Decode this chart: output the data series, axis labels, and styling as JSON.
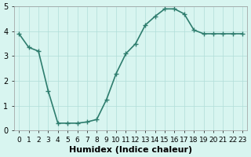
{
  "x": [
    0,
    1,
    2,
    3,
    4,
    5,
    6,
    7,
    8,
    9,
    10,
    11,
    12,
    13,
    14,
    15,
    16,
    17,
    18,
    19,
    20,
    21,
    22,
    23
  ],
  "y": [
    3.9,
    3.35,
    3.2,
    1.6,
    0.3,
    0.3,
    0.3,
    0.35,
    0.45,
    1.25,
    2.3,
    3.1,
    3.5,
    4.25,
    4.6,
    4.9,
    4.9,
    4.7,
    4.05,
    3.9,
    3.9,
    3.9,
    3.9,
    3.9
  ],
  "line_color": "#2e7d6e",
  "marker": "+",
  "bg_color": "#d8f5f0",
  "grid_color": "#b0ddd8",
  "xlabel": "Humidex (Indice chaleur)",
  "ylabel": "",
  "xlim": [
    -0.5,
    23.5
  ],
  "ylim": [
    0,
    5
  ],
  "yticks": [
    0,
    1,
    2,
    3,
    4,
    5
  ],
  "xtick_labels": [
    "0",
    "1",
    "2",
    "3",
    "4",
    "5",
    "6",
    "7",
    "8",
    "9",
    "10",
    "11",
    "12",
    "13",
    "14",
    "15",
    "16",
    "17",
    "18",
    "19",
    "20",
    "21",
    "22",
    "23"
  ],
  "xlabel_fontsize": 8,
  "tick_fontsize": 7,
  "linewidth": 1.2,
  "markersize": 4
}
